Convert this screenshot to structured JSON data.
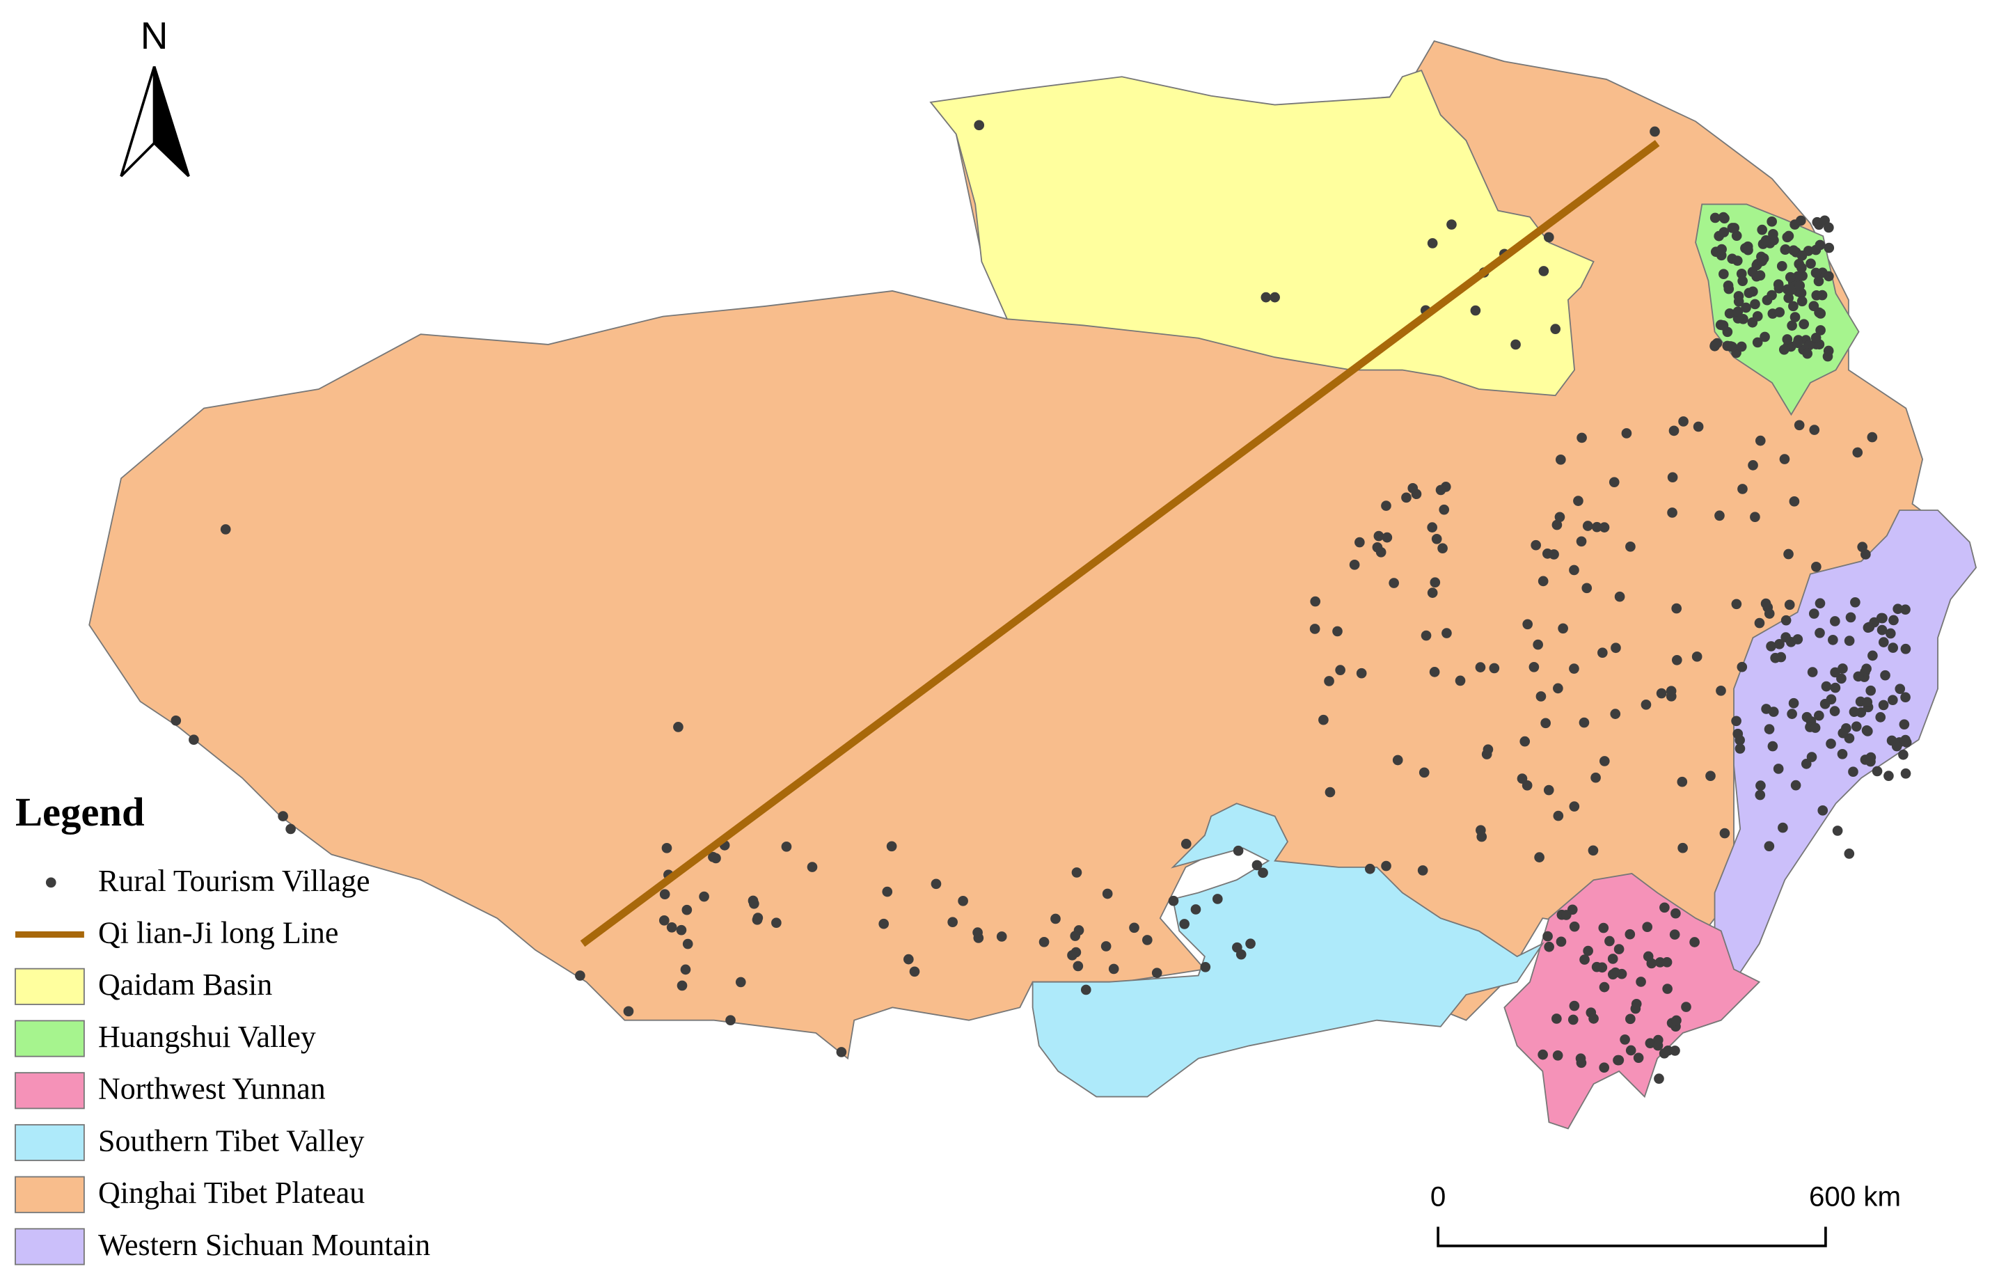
{
  "north_label": "N",
  "legend": {
    "title": "Legend",
    "items": [
      {
        "label": "Rural Tourism Village",
        "symbol": "point",
        "color": "#3d3d3d"
      },
      {
        "label": "Qi lian-Ji long Line",
        "symbol": "line",
        "color": "#a8680a"
      },
      {
        "label": "Qaidam Basin",
        "symbol": "fill",
        "color": "#ffff9e"
      },
      {
        "label": "Huangshui Valley",
        "symbol": "fill",
        "color": "#a6f48e"
      },
      {
        "label": "Northwest Yunnan",
        "symbol": "fill",
        "color": "#f592b8"
      },
      {
        "label": "Southern Tibet Valley",
        "symbol": "fill",
        "color": "#aeeafa"
      },
      {
        "label": "Qinghai Tibet Plateau",
        "symbol": "fill",
        "color": "#f8bd8c"
      },
      {
        "label": "Western Sichuan Mountain",
        "symbol": "fill",
        "color": "#cbbffa"
      }
    ]
  },
  "scale_bar": {
    "start": "0",
    "end": "600 km"
  }
}
